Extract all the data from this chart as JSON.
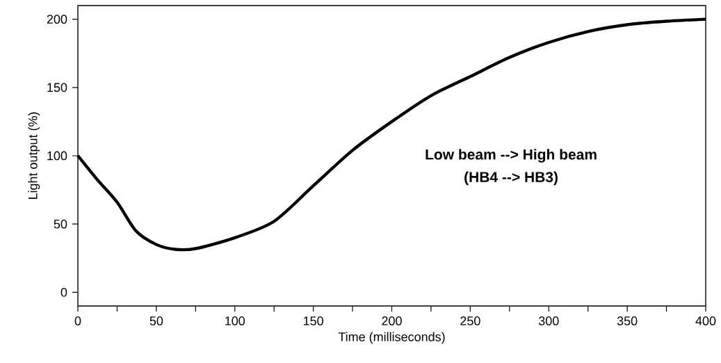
{
  "chart_data": {
    "type": "line",
    "xlabel": "Time (milliseconds)",
    "ylabel": "Light output (%)",
    "annotations": [
      "**Low beam --> High beam**",
      "**(HB4 --> HB3)**"
    ],
    "x": [
      0,
      12,
      25,
      37,
      50,
      62,
      75,
      100,
      125,
      150,
      175,
      200,
      225,
      250,
      275,
      300,
      325,
      350,
      375,
      400
    ],
    "series": [
      {
        "color": "#000000",
        "values": [
          100,
          83,
          66,
          45,
          35,
          31.5,
          32,
          40,
          52,
          78,
          104,
          125,
          144,
          158,
          172,
          183,
          191,
          196,
          198.5,
          200
        ]
      }
    ],
    "xlim": [
      0,
      400
    ],
    "ylim": [
      -10,
      210
    ],
    "xticks": [
      0,
      {
        "value": 25,
        "label": null
      },
      50,
      {
        "value": 75,
        "label": null
      },
      100,
      {
        "value": 125,
        "label": null
      },
      150,
      {
        "value": 175,
        "label": null
      },
      200,
      {
        "value": 225,
        "label": null
      },
      250,
      {
        "value": 275,
        "label": null
      },
      300,
      {
        "value": 325,
        "label": null
      },
      350,
      {
        "value": 375,
        "label": null
      },
      400
    ],
    "yticks": [
      0,
      50,
      100,
      150,
      200
    ],
    "grid": false,
    "legend": false,
    "marker": "none",
    "line_style": "solid"
  }
}
